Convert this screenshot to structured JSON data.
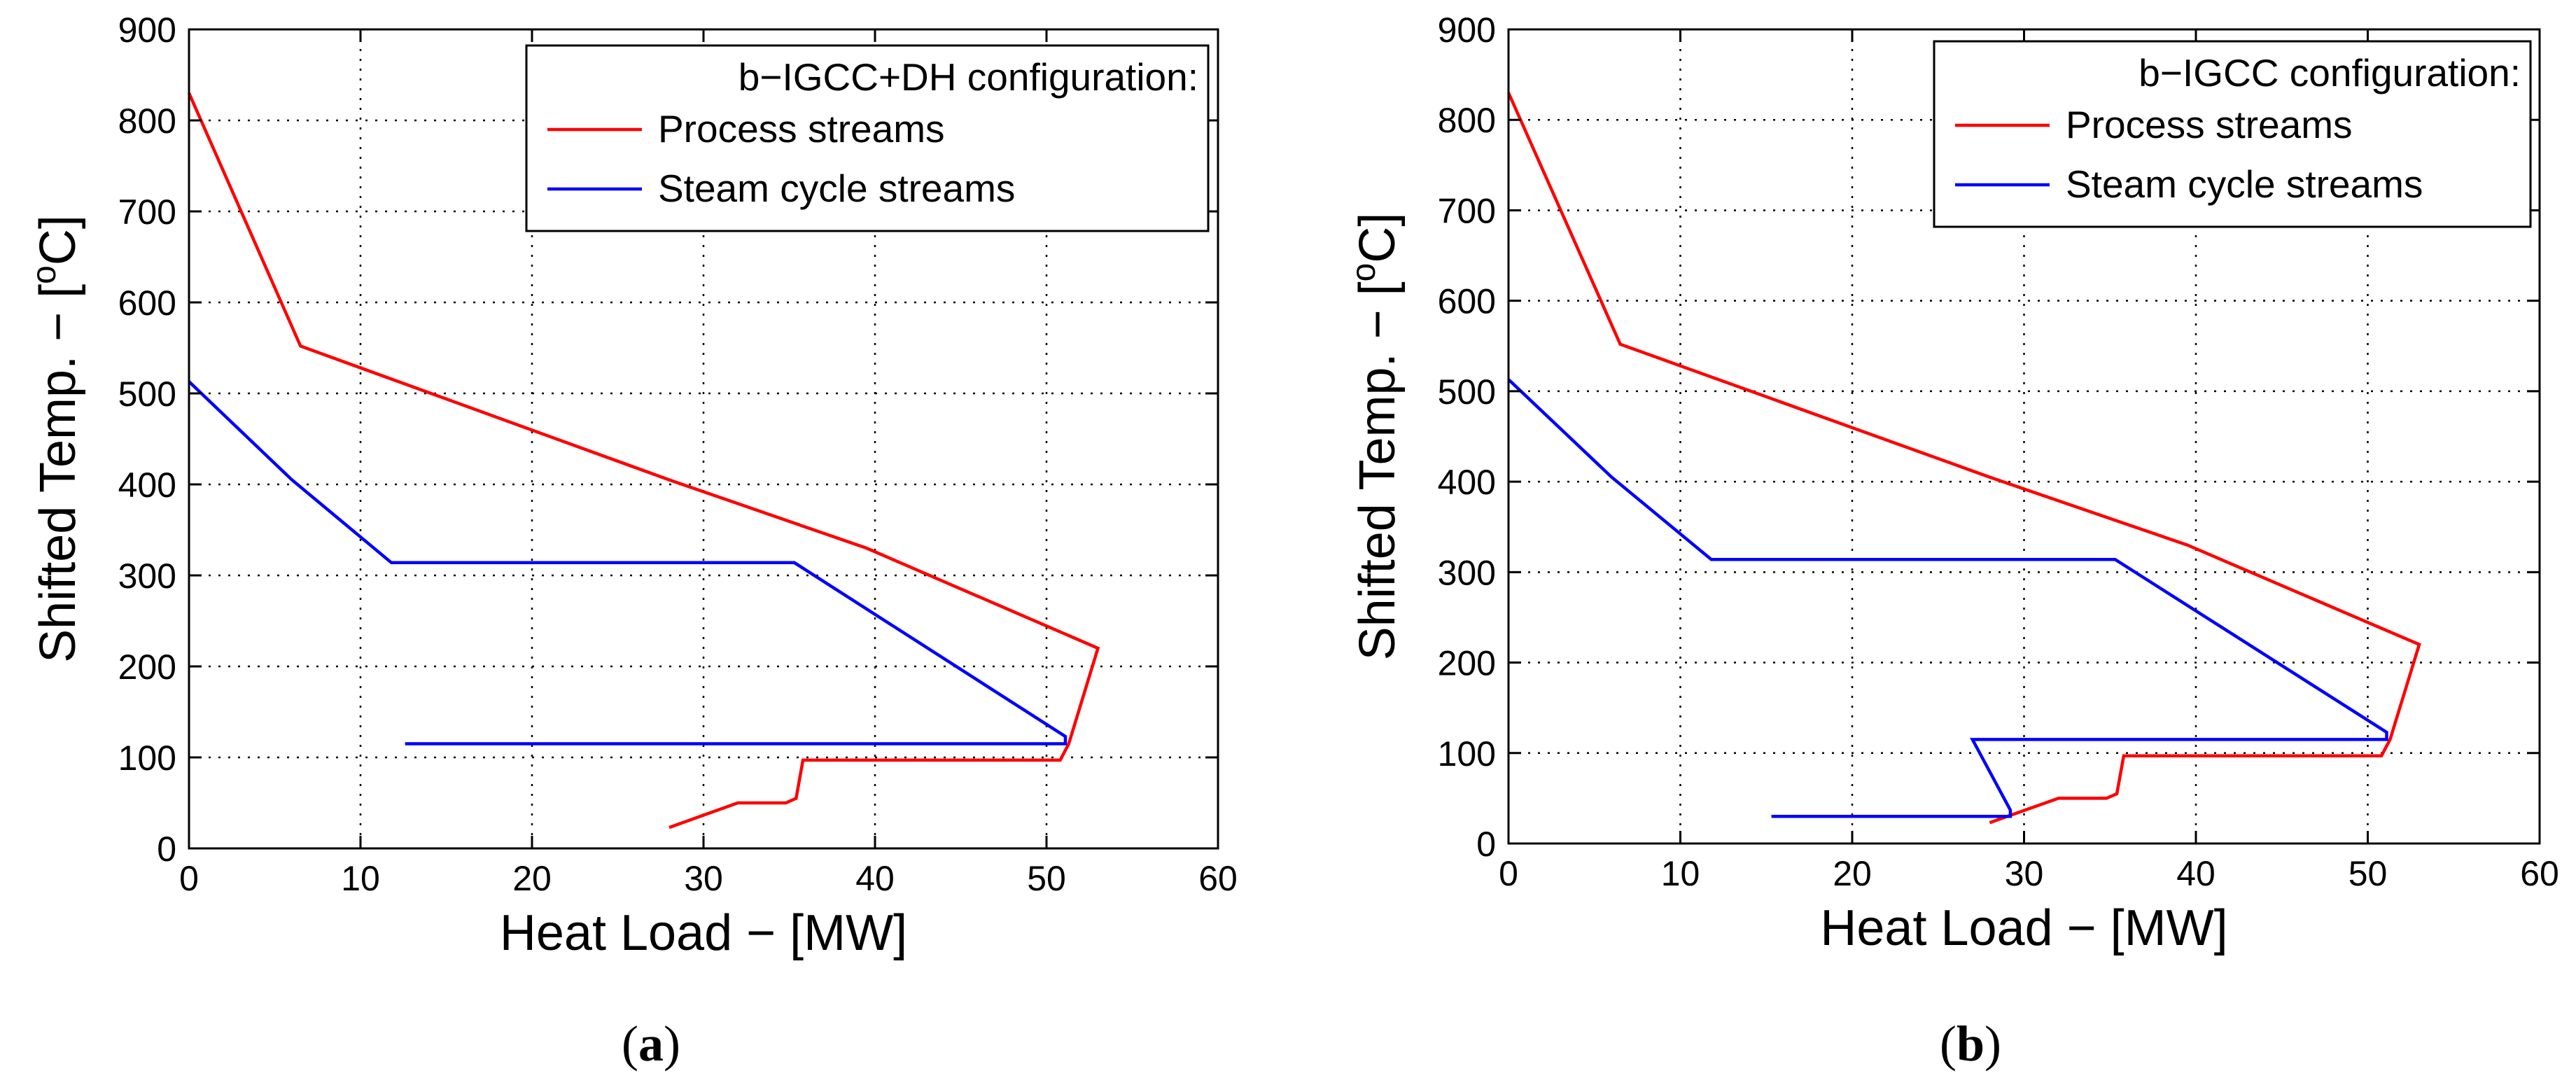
{
  "chart_data": [
    {
      "type": "line",
      "panel": "(a)",
      "caption_letter": "a",
      "xlabel": "Heat Load − [MW]",
      "ylabel_main": "Shifted Temp. − [",
      "ylabel_sup": "o",
      "ylabel_end": "C]",
      "xlim": [
        0,
        60
      ],
      "ylim": [
        0,
        900
      ],
      "xticks": [
        0,
        10,
        20,
        30,
        40,
        50,
        60
      ],
      "yticks": [
        0,
        100,
        200,
        300,
        400,
        500,
        600,
        700,
        800,
        900
      ],
      "grid": true,
      "legend_position": "top-right",
      "legend_title": "b−IGCC+DH configuration:",
      "series": [
        {
          "name": "Process streams",
          "color": "#ff0000",
          "points": [
            [
              0,
              830
            ],
            [
              6.5,
              552
            ],
            [
              28,
              405
            ],
            [
              39.5,
              330
            ],
            [
              53,
              220
            ],
            [
              51.3,
              115
            ],
            [
              50.8,
              97
            ],
            [
              35.8,
              97
            ],
            [
              35.4,
              55
            ],
            [
              34.8,
              50
            ],
            [
              32,
              50
            ],
            [
              28,
              23
            ]
          ]
        },
        {
          "name": "Steam cycle streams",
          "color": "#0000ff",
          "points": [
            [
              0,
              513
            ],
            [
              6,
              405
            ],
            [
              11.8,
              314
            ],
            [
              35.3,
              314
            ],
            [
              51.1,
              123
            ],
            [
              51.1,
              115
            ],
            [
              12.6,
              115
            ]
          ]
        }
      ]
    },
    {
      "type": "line",
      "panel": "(b)",
      "caption_letter": "b",
      "xlabel": "Heat Load − [MW]",
      "ylabel_main": "Shifted Temp. − [",
      "ylabel_sup": "o",
      "ylabel_end": "C]",
      "xlim": [
        0,
        60
      ],
      "ylim": [
        0,
        900
      ],
      "xticks": [
        0,
        10,
        20,
        30,
        40,
        50,
        60
      ],
      "yticks": [
        0,
        100,
        200,
        300,
        400,
        500,
        600,
        700,
        800,
        900
      ],
      "grid": true,
      "legend_position": "top-right",
      "legend_title": "b−IGCC configuration:",
      "series": [
        {
          "name": "Process streams",
          "color": "#ff0000",
          "points": [
            [
              0,
              830
            ],
            [
              6.5,
              552
            ],
            [
              28,
              405
            ],
            [
              39.5,
              330
            ],
            [
              53,
              220
            ],
            [
              51.3,
              115
            ],
            [
              50.8,
              97
            ],
            [
              35.8,
              97
            ],
            [
              35.4,
              55
            ],
            [
              34.8,
              50
            ],
            [
              32,
              50
            ],
            [
              28,
              23
            ]
          ]
        },
        {
          "name": "Steam cycle streams",
          "color": "#0000ff",
          "points": [
            [
              0,
              513
            ],
            [
              6,
              405
            ],
            [
              11.8,
              314
            ],
            [
              35.3,
              314
            ],
            [
              51.1,
              123
            ],
            [
              51.1,
              115
            ],
            [
              27,
              115
            ],
            [
              29.2,
              37
            ],
            [
              29.2,
              30
            ],
            [
              15.3,
              30
            ]
          ]
        }
      ]
    }
  ]
}
